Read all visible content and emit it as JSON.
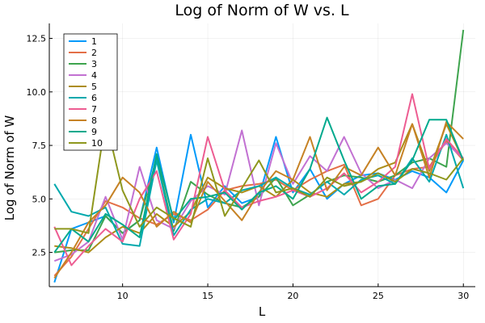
{
  "chart_data": {
    "type": "line",
    "title": "Log of Norm of W vs. L",
    "xlabel": "L",
    "ylabel": "Log of Norm of W",
    "xlim": [
      5.7,
      30.7
    ],
    "ylim": [
      0.9,
      13.2
    ],
    "xticks": [
      10,
      15,
      20,
      25,
      30
    ],
    "yticks": [
      2.5,
      5.0,
      7.5,
      10.0,
      12.5
    ],
    "xtick_labels": [
      "10",
      "15",
      "20",
      "25",
      "30"
    ],
    "ytick_labels": [
      "2.5",
      "5.0",
      "7.5",
      "10.0",
      "12.5"
    ],
    "grid": true,
    "legend_position": "top-left",
    "x": [
      6,
      7,
      8,
      9,
      10,
      11,
      12,
      13,
      14,
      15,
      16,
      17,
      18,
      19,
      20,
      21,
      22,
      23,
      24,
      25,
      26,
      27,
      28,
      29,
      30
    ],
    "series": [
      {
        "name": "1",
        "color": "#009AFA",
        "values": [
          1.1,
          3.6,
          3.9,
          4.2,
          3.4,
          4.0,
          7.4,
          3.9,
          8.0,
          4.6,
          5.6,
          4.8,
          5.1,
          7.9,
          5.3,
          6.4,
          5.0,
          5.7,
          6.1,
          6.2,
          5.9,
          6.3,
          6.0,
          5.3,
          6.8
        ]
      },
      {
        "name": "2",
        "color": "#E36F47",
        "values": [
          1.4,
          2.3,
          3.6,
          4.9,
          4.6,
          4.1,
          3.8,
          4.3,
          4.0,
          4.5,
          5.4,
          5.6,
          5.7,
          5.9,
          5.4,
          5.9,
          6.3,
          6.6,
          4.7,
          5.0,
          6.1,
          6.4,
          6.5,
          7.7,
          6.8
        ]
      },
      {
        "name": "3",
        "color": "#3EA44E",
        "values": [
          2.5,
          2.6,
          2.6,
          4.2,
          3.4,
          4.0,
          6.9,
          3.5,
          5.8,
          5.2,
          4.8,
          4.6,
          5.1,
          6.0,
          4.7,
          5.2,
          5.8,
          6.1,
          6.0,
          5.8,
          6.1,
          6.7,
          6.9,
          6.5,
          12.9
        ]
      },
      {
        "name": "4",
        "color": "#C271D2",
        "values": [
          2.1,
          2.4,
          3.0,
          5.1,
          3.1,
          6.5,
          4.0,
          3.6,
          4.9,
          5.6,
          5.2,
          8.2,
          4.7,
          7.6,
          5.7,
          7.0,
          6.3,
          7.9,
          6.2,
          5.5,
          5.9,
          5.5,
          6.9,
          7.6,
          6.9
        ]
      },
      {
        "name": "5",
        "color": "#AC8D18",
        "values": [
          2.8,
          2.7,
          2.5,
          3.2,
          3.7,
          3.4,
          4.3,
          3.7,
          4.4,
          6.0,
          5.5,
          5.3,
          5.6,
          5.1,
          5.9,
          5.3,
          5.1,
          5.7,
          5.8,
          6.4,
          6.7,
          8.5,
          6.3,
          8.5,
          6.8
        ]
      },
      {
        "name": "6",
        "color": "#00A9AD",
        "values": [
          5.7,
          4.4,
          4.2,
          4.6,
          2.9,
          2.8,
          6.8,
          3.3,
          4.5,
          5.0,
          4.8,
          5.4,
          5.6,
          6.0,
          5.5,
          5.2,
          5.8,
          5.2,
          5.9,
          6.1,
          5.7,
          6.9,
          5.8,
          8.0,
          5.5
        ]
      },
      {
        "name": "7",
        "color": "#ED5D92",
        "values": [
          3.7,
          1.9,
          2.8,
          3.6,
          3.0,
          5.0,
          6.3,
          3.1,
          4.3,
          7.9,
          5.4,
          4.6,
          4.9,
          5.1,
          5.4,
          5.1,
          5.5,
          6.2,
          5.3,
          5.8,
          6.5,
          9.9,
          6.4,
          7.8,
          6.9
        ]
      },
      {
        "name": "8",
        "color": "#C68225",
        "values": [
          1.3,
          2.5,
          3.9,
          4.7,
          6.0,
          5.3,
          3.7,
          4.4,
          3.9,
          5.8,
          4.9,
          4.0,
          5.3,
          6.3,
          5.9,
          7.9,
          5.4,
          6.5,
          6.1,
          7.4,
          6.1,
          8.5,
          6.0,
          8.6,
          7.8
        ]
      },
      {
        "name": "9",
        "color": "#00A98D",
        "values": [
          2.5,
          3.6,
          3.0,
          4.3,
          3.8,
          3.2,
          7.1,
          4.0,
          5.0,
          5.1,
          5.3,
          4.5,
          5.3,
          5.6,
          5.0,
          6.4,
          8.8,
          6.8,
          5.0,
          5.6,
          5.7,
          6.8,
          8.7,
          8.7,
          6.8
        ]
      },
      {
        "name": "10",
        "color": "#8E971D",
        "values": [
          3.6,
          3.6,
          3.4,
          8.7,
          5.4,
          3.7,
          4.6,
          4.1,
          3.7,
          6.9,
          4.2,
          5.5,
          6.8,
          5.3,
          5.5,
          5.1,
          6.0,
          5.6,
          5.8,
          6.2,
          5.8,
          6.4,
          6.2,
          5.9,
          6.9
        ]
      }
    ]
  }
}
